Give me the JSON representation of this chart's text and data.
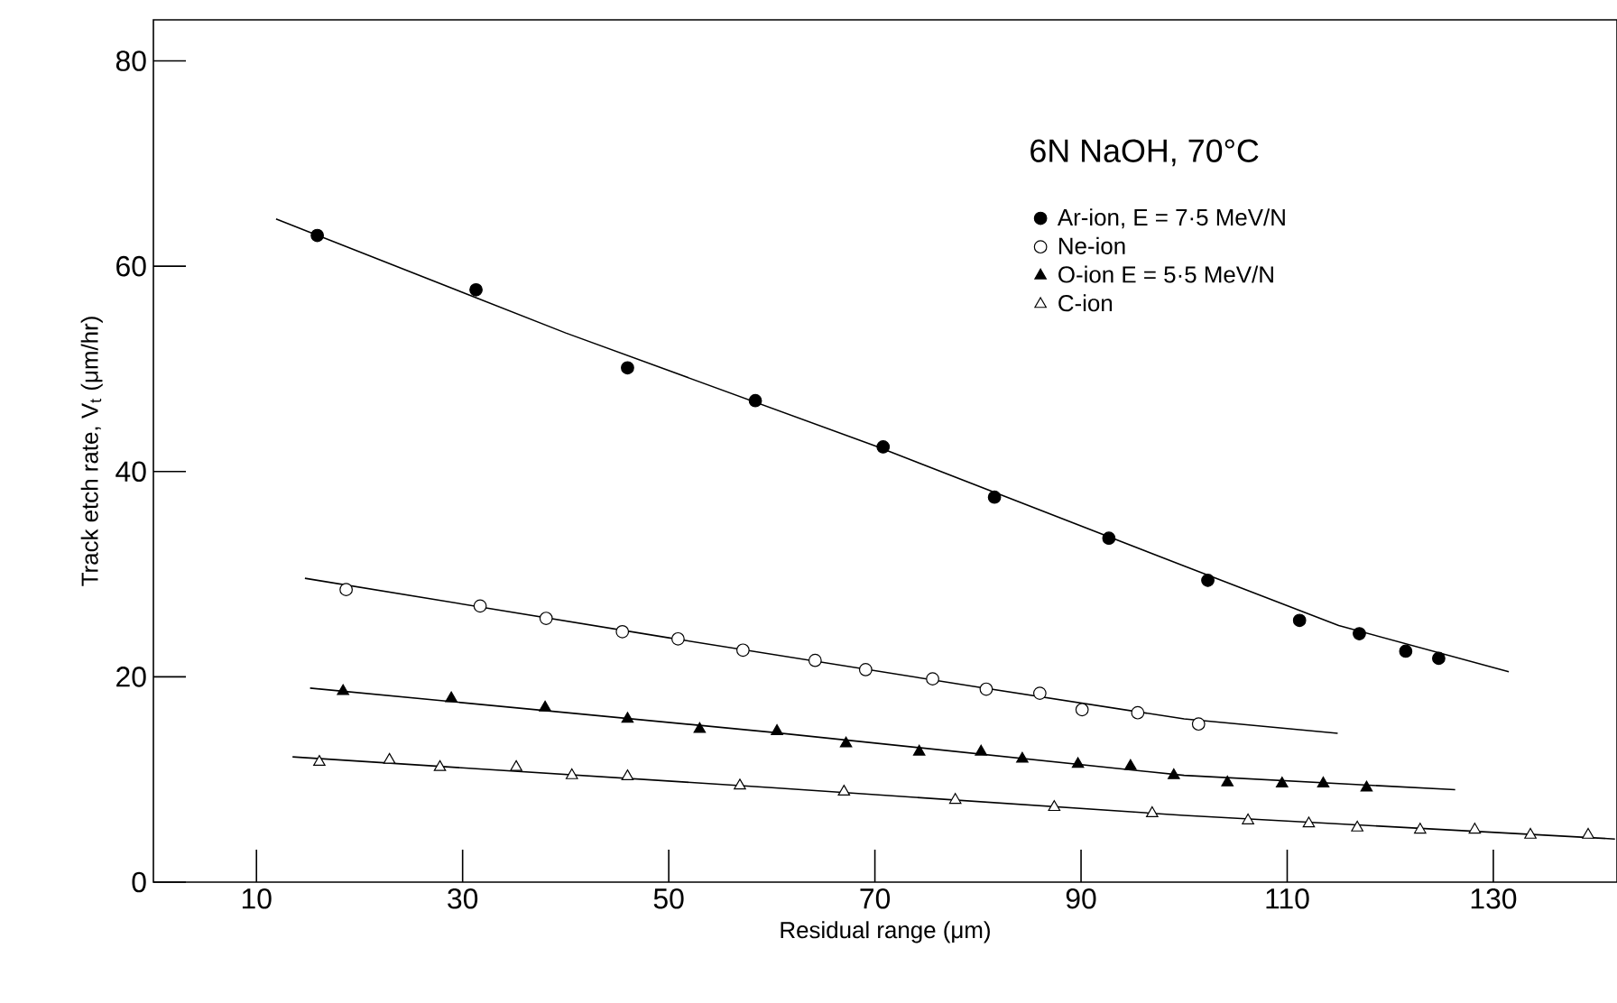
{
  "chart_data": {
    "type": "scatter",
    "xlabel": "Residual range (μm)",
    "ylabel": "Track etch rate, V$_{t}$ (μm/hr)",
    "legend_title": "6N NaOH, 70°C",
    "legend": "top right",
    "xlim": [
      0,
      142
    ],
    "ylim": [
      0,
      84
    ],
    "xticks": [
      10,
      30,
      50,
      70,
      90,
      110,
      130
    ],
    "yticks": [
      0,
      20,
      40,
      60,
      80
    ],
    "series": [
      {
        "name": "Ar-ion, E = 7·5 MeV/N",
        "marker": "circle",
        "color": "#000000",
        "x": [
          15.9,
          31.3,
          46.0,
          58.4,
          70.8,
          81.6,
          92.7,
          102.3,
          111.2,
          117.0,
          121.5,
          124.7
        ],
        "values": [
          63.0,
          57.7,
          50.1,
          46.9,
          42.4,
          37.5,
          33.5,
          29.4,
          25.5,
          24.2,
          22.5,
          21.8
        ]
      },
      {
        "name": "Ne-ion",
        "marker": "circle",
        "color": "#ffffff",
        "x": [
          18.7,
          31.7,
          38.1,
          45.5,
          50.9,
          57.2,
          64.2,
          69.1,
          75.6,
          80.8,
          86.0,
          90.1,
          95.5,
          101.4
        ],
        "values": [
          28.5,
          26.9,
          25.7,
          24.4,
          23.7,
          22.6,
          21.6,
          20.7,
          19.8,
          18.8,
          18.4,
          16.8,
          16.5,
          15.4
        ]
      },
      {
        "name": "O-ion  E = 5·5 MeV/N",
        "marker": "triangle",
        "color": "#000000",
        "x": [
          18.4,
          28.9,
          38.0,
          46.0,
          53.0,
          60.5,
          67.2,
          74.3,
          80.3,
          84.3,
          89.7,
          94.8,
          99.0,
          104.2,
          109.5,
          113.5,
          117.7
        ],
        "values": [
          18.6,
          17.9,
          17.0,
          15.9,
          14.9,
          14.7,
          13.5,
          12.7,
          12.7,
          12.0,
          11.5,
          11.3,
          10.4,
          9.7,
          9.6,
          9.6,
          9.2
        ]
      },
      {
        "name": "C-ion",
        "marker": "triangle",
        "color": "#ffffff",
        "x": [
          16.1,
          22.9,
          27.8,
          35.2,
          40.6,
          46.0,
          56.9,
          67.0,
          77.8,
          87.4,
          96.9,
          106.2,
          112.1,
          116.8,
          122.9,
          128.2,
          133.6,
          139.2
        ],
        "values": [
          11.7,
          11.9,
          11.2,
          11.2,
          10.4,
          10.3,
          9.4,
          8.8,
          8.0,
          7.3,
          6.7,
          6.0,
          5.7,
          5.3,
          5.1,
          5.1,
          4.6,
          4.6
        ]
      },
      {
        "type": "line",
        "color": "#000000",
        "x": [
          11.9,
          40,
          70,
          100,
          115,
          131.5
        ],
        "values": [
          64.6,
          53.5,
          42.5,
          30.8,
          25.0,
          20.5
        ]
      },
      {
        "type": "line",
        "color": "#000000",
        "x": [
          14.7,
          50,
          80,
          100,
          114.9
        ],
        "values": [
          29.6,
          23.8,
          19.0,
          15.9,
          14.5
        ]
      },
      {
        "type": "line",
        "color": "#000000",
        "x": [
          15.2,
          60,
          100,
          126.3
        ],
        "values": [
          18.9,
          14.6,
          10.4,
          9.0
        ]
      },
      {
        "type": "line",
        "color": "#000000",
        "x": [
          13.5,
          60,
          100,
          141.8
        ],
        "values": [
          12.2,
          9.2,
          6.5,
          4.2
        ]
      }
    ]
  }
}
